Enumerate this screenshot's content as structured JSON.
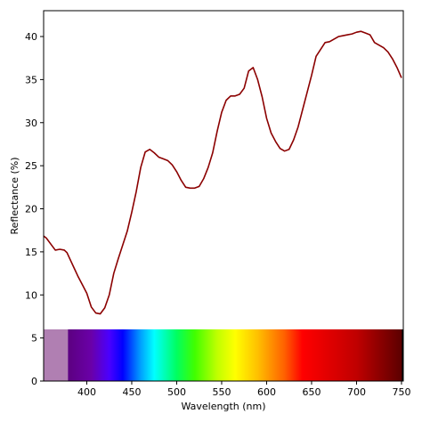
{
  "chart_data": {
    "type": "line",
    "xlabel": "Wavelength (nm)",
    "ylabel": "Reflectance (%)",
    "xlim": [
      352,
      752
    ],
    "ylim": [
      0,
      43
    ],
    "x_ticks": [
      400,
      450,
      500,
      550,
      600,
      650,
      700,
      750
    ],
    "y_ticks": [
      0,
      5,
      10,
      15,
      20,
      25,
      30,
      35,
      40
    ],
    "grid": false,
    "line_color": "#8b0000",
    "series": [
      {
        "x": [
          350,
          355,
          360,
          365,
          370,
          375,
          378,
          382,
          386,
          390,
          395,
          400,
          405,
          410,
          415,
          420,
          425,
          430,
          435,
          440,
          445,
          450,
          455,
          460,
          465,
          470,
          475,
          480,
          485,
          490,
          495,
          500,
          505,
          510,
          515,
          520,
          525,
          530,
          535,
          540,
          545,
          550,
          555,
          560,
          565,
          570,
          575,
          580,
          585,
          590,
          595,
          600,
          605,
          610,
          615,
          620,
          625,
          630,
          635,
          640,
          645,
          650,
          655,
          660,
          665,
          670,
          675,
          680,
          685,
          690,
          695,
          700,
          705,
          710,
          715,
          720,
          725,
          730,
          735,
          740,
          745,
          750
        ],
        "y": [
          17.0,
          16.6,
          15.9,
          15.2,
          15.3,
          15.2,
          14.9,
          14.0,
          13.1,
          12.2,
          11.2,
          10.2,
          8.6,
          7.9,
          7.8,
          8.5,
          10.0,
          12.5,
          14.2,
          15.8,
          17.4,
          19.6,
          22.0,
          24.8,
          26.6,
          26.9,
          26.5,
          26.0,
          25.8,
          25.6,
          25.1,
          24.3,
          23.3,
          22.5,
          22.4,
          22.4,
          22.6,
          23.5,
          24.8,
          26.5,
          29.0,
          31.2,
          32.6,
          33.1,
          33.1,
          33.3,
          34.0,
          36.0,
          36.4,
          35.0,
          33.0,
          30.5,
          28.8,
          27.8,
          27.0,
          26.7,
          26.9,
          28.0,
          29.5,
          31.5,
          33.5,
          35.5,
          37.7,
          38.5,
          39.3,
          39.4,
          39.7,
          40.0,
          40.1,
          40.2,
          40.3,
          40.5,
          40.6,
          40.4,
          40.2,
          39.3,
          39.0,
          38.7,
          38.2,
          37.4,
          36.4,
          35.2
        ]
      }
    ],
    "spectrum_band": {
      "y_range": [
        0,
        6
      ],
      "uv_end": 379,
      "uv_color": "#b07fb2",
      "stops": [
        {
          "wl": 379,
          "color": "#5c0080"
        },
        {
          "wl": 405,
          "color": "#6a00a8"
        },
        {
          "wl": 425,
          "color": "#4a00ff"
        },
        {
          "wl": 440,
          "color": "#0000ff"
        },
        {
          "wl": 460,
          "color": "#00a0ff"
        },
        {
          "wl": 475,
          "color": "#00ffff"
        },
        {
          "wl": 500,
          "color": "#00ff60"
        },
        {
          "wl": 520,
          "color": "#40ff00"
        },
        {
          "wl": 545,
          "color": "#c0ff00"
        },
        {
          "wl": 565,
          "color": "#ffff00"
        },
        {
          "wl": 590,
          "color": "#ffc000"
        },
        {
          "wl": 620,
          "color": "#ff6000"
        },
        {
          "wl": 640,
          "color": "#ff0000"
        },
        {
          "wl": 700,
          "color": "#c00000"
        },
        {
          "wl": 751,
          "color": "#5a0000"
        }
      ]
    }
  }
}
